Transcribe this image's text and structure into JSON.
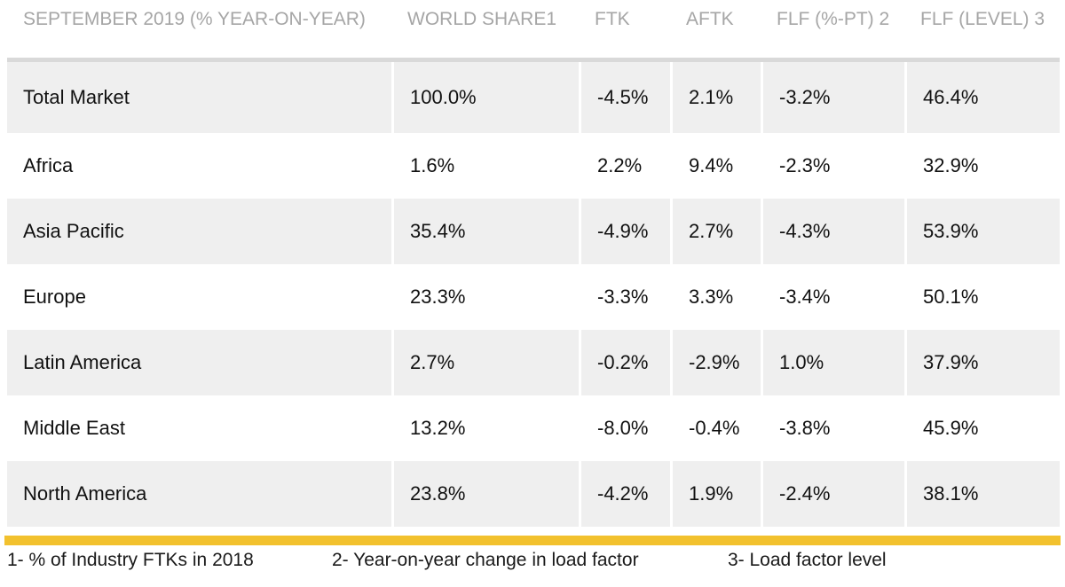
{
  "table": {
    "headers": [
      "SEPTEMBER 2019 (% YEAR-ON-YEAR)",
      "WORLD SHARE1",
      "FTK",
      "AFTK",
      "FLF (%-PT) 2",
      "FLF (LEVEL) 3"
    ],
    "rows": [
      [
        "Total Market",
        "100.0%",
        "-4.5%",
        "2.1%",
        "-3.2%",
        "46.4%"
      ],
      [
        "Africa",
        "1.6%",
        "2.2%",
        "9.4%",
        "-2.3%",
        "32.9%"
      ],
      [
        "Asia Pacific",
        "35.4%",
        "-4.9%",
        "2.7%",
        "-4.3%",
        "53.9%"
      ],
      [
        "Europe",
        "23.3%",
        "-3.3%",
        "3.3%",
        "-3.4%",
        "50.1%"
      ],
      [
        "Latin America",
        "2.7%",
        "-0.2%",
        "-2.9%",
        "1.0%",
        "37.9%"
      ],
      [
        "Middle East",
        "13.2%",
        "-8.0%",
        "-0.4%",
        "-3.8%",
        "45.9%"
      ],
      [
        "North America",
        "23.8%",
        "-4.2%",
        "1.9%",
        "-2.4%",
        "38.1%"
      ]
    ]
  },
  "footnotes": [
    "1- % of Industry FTKs in 2018",
    "2- Year-on-year change in load factor",
    "3- Load factor level"
  ],
  "colors": {
    "header_text": "#a6a6a6",
    "row_band": "#efefef",
    "accent_bar": "#f2c12e"
  }
}
